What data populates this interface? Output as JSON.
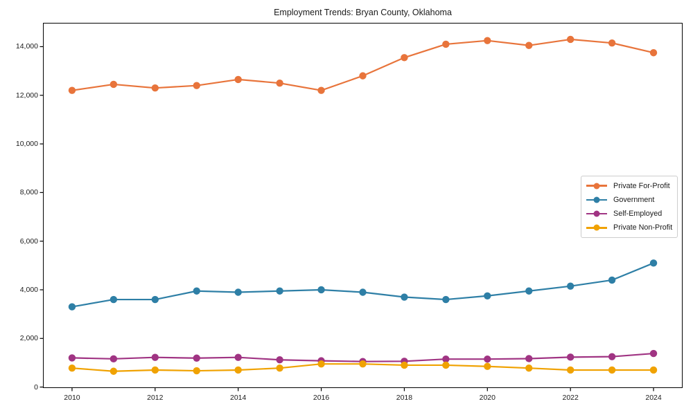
{
  "chart_data": {
    "type": "line",
    "title": "Employment Trends: Bryan County, Oklahoma",
    "xlabel": "",
    "ylabel": "",
    "grid": false,
    "legend_position": "center right",
    "x": [
      2010,
      2011,
      2012,
      2013,
      2014,
      2015,
      2016,
      2017,
      2018,
      2019,
      2020,
      2021,
      2022,
      2023,
      2024
    ],
    "series": [
      {
        "name": "Private For-Profit",
        "color": "#e8743b",
        "values": [
          12200,
          12450,
          12300,
          12400,
          12650,
          12500,
          12200,
          12800,
          13550,
          14100,
          14250,
          14050,
          14300,
          14150,
          13750
        ]
      },
      {
        "name": "Government",
        "color": "#2e7fa6",
        "values": [
          3300,
          3600,
          3600,
          3950,
          3900,
          3950,
          4000,
          3900,
          3700,
          3600,
          3750,
          3950,
          4150,
          4400,
          5100
        ]
      },
      {
        "name": "Self-Employed",
        "color": "#a03483",
        "values": [
          1200,
          1160,
          1220,
          1190,
          1220,
          1120,
          1080,
          1050,
          1060,
          1150,
          1150,
          1170,
          1230,
          1250,
          1380
        ]
      },
      {
        "name": "Private Non-Profit",
        "color": "#f0a202",
        "values": [
          780,
          650,
          700,
          670,
          700,
          780,
          950,
          950,
          900,
          900,
          850,
          780,
          700,
          700,
          700
        ]
      }
    ],
    "xticks": [
      2010,
      2012,
      2014,
      2016,
      2018,
      2020,
      2022,
      2024
    ],
    "xtick_labels": [
      "2010",
      "2012",
      "2014",
      "2016",
      "2018",
      "2020",
      "2022",
      "2024"
    ],
    "yticks": [
      0,
      2000,
      4000,
      6000,
      8000,
      10000,
      12000,
      14000
    ],
    "ytick_labels": [
      "0",
      "2,000",
      "4,000",
      "6,000",
      "8,000",
      "10,000",
      "12,000",
      "14,000"
    ],
    "xlim": [
      2009.3,
      2024.7
    ],
    "ylim": [
      -40,
      14980
    ]
  },
  "colors": {
    "background": "#ffffff",
    "spine": "#000000",
    "text": "#1a1a1a",
    "legend_border": "#cccccc"
  }
}
